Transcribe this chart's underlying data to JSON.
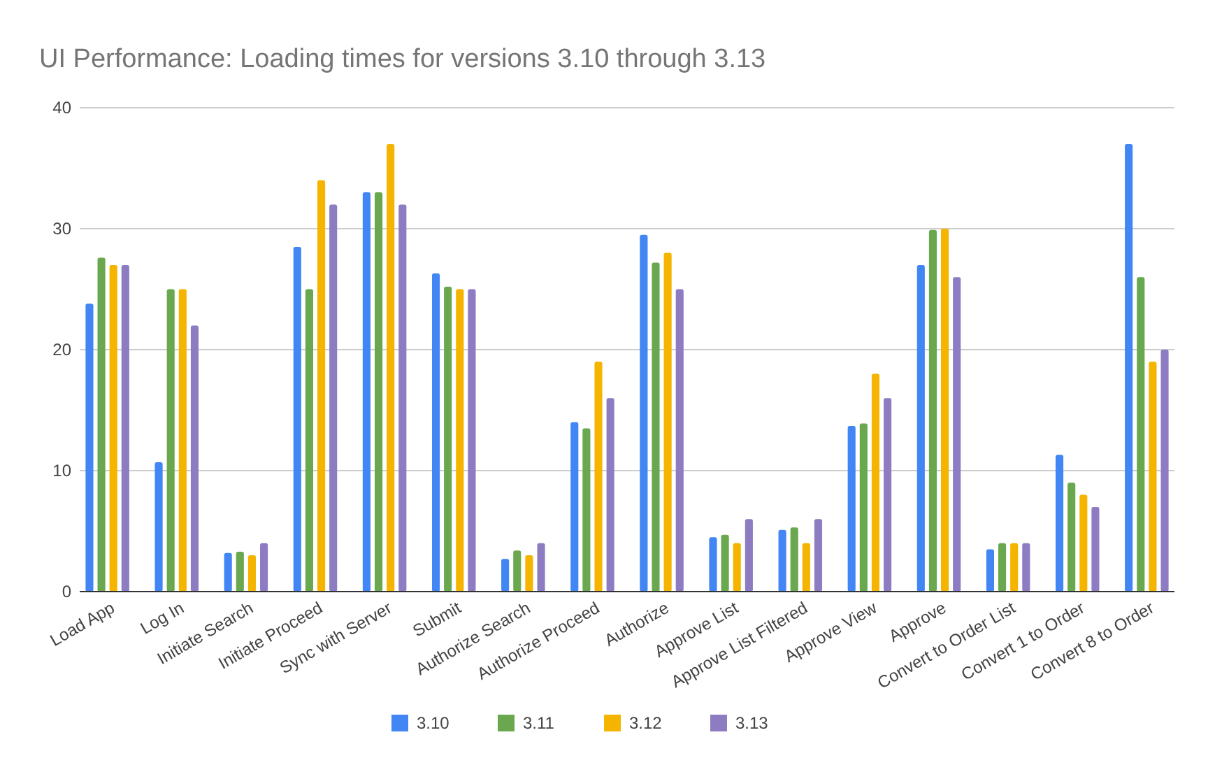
{
  "chart_data": {
    "type": "bar",
    "title": "UI Performance: Loading times for versions 3.10 through 3.13",
    "categories": [
      "Load App",
      "Log In",
      "Initiate Search",
      "Initiate Proceed",
      "Sync with Server",
      "Submit",
      "Authorize Search",
      "Authorize Proceed",
      "Authorize",
      "Approve List",
      "Approve List Filtered",
      "Approve View",
      "Approve",
      "Convert to Order List",
      "Convert 1 to Order",
      "Convert 8 to Order"
    ],
    "series": [
      {
        "name": "3.10",
        "color": "#4285f4",
        "values": [
          23.8,
          10.7,
          3.2,
          28.5,
          33,
          26.3,
          2.7,
          14,
          29.5,
          4.5,
          5.1,
          13.7,
          27,
          3.5,
          11.3,
          37
        ]
      },
      {
        "name": "3.11",
        "color": "#6aa84f",
        "values": [
          27.6,
          25,
          3.3,
          25,
          33,
          25.2,
          3.4,
          13.5,
          27.2,
          4.7,
          5.3,
          13.9,
          29.9,
          4,
          9,
          26
        ]
      },
      {
        "name": "3.12",
        "color": "#f4b400",
        "values": [
          27,
          25,
          3,
          34,
          37,
          25,
          3,
          19,
          28,
          4,
          4,
          18,
          30,
          4,
          8,
          19
        ]
      },
      {
        "name": "3.13",
        "color": "#8e7cc3",
        "values": [
          27,
          22,
          4,
          32,
          32,
          25,
          4,
          16,
          25,
          6,
          6,
          16,
          26,
          4,
          7,
          20
        ]
      }
    ],
    "ylim": [
      0,
      40
    ],
    "yticks": [
      0,
      10,
      20,
      30,
      40
    ],
    "grid": "y",
    "legend": "bottom"
  }
}
